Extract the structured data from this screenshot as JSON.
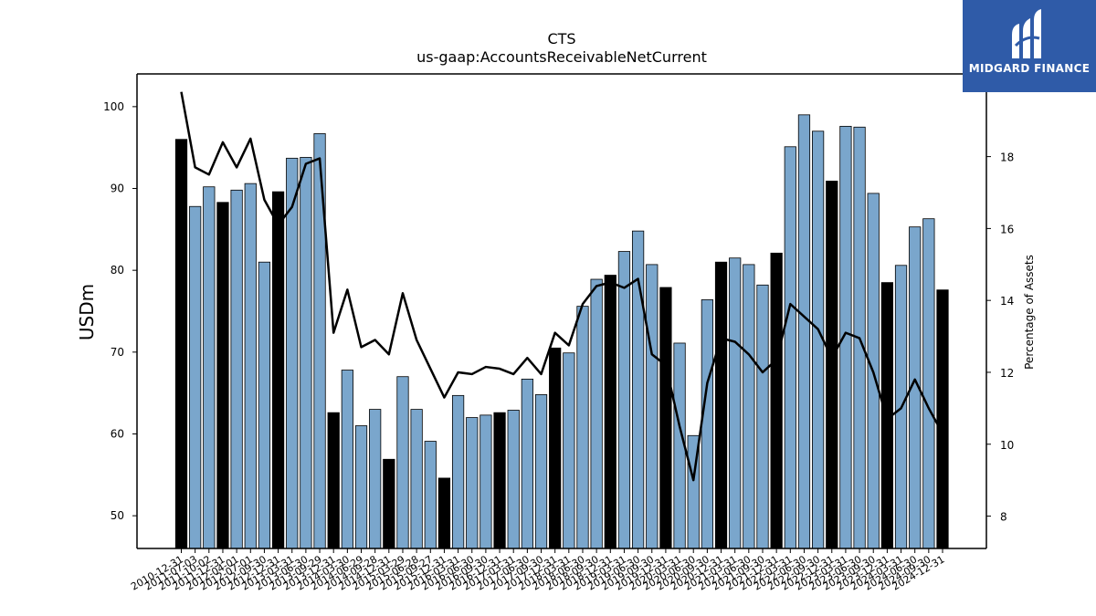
{
  "brand": {
    "name": "MIDGARD FINANCE",
    "bg_color": "#2f5ba8"
  },
  "chart_data": {
    "type": "bar",
    "title": "CTS",
    "subtitle": "us-gaap:AccountsReceivableNetCurrent",
    "ylabel": "USDm",
    "y2label": "Percentage of Assets",
    "ylim": [
      46,
      104
    ],
    "y2lim": [
      7.1,
      20.3
    ],
    "yticks": [
      50,
      60,
      70,
      80,
      90,
      100
    ],
    "y2ticks": [
      8,
      10,
      12,
      14,
      16,
      18
    ],
    "colors": {
      "annual": "#000000",
      "quarterly": "#7aa6cc",
      "line": "#000000"
    },
    "categories": [
      "2010-12-31",
      "2011-07-03",
      "2011-10-02",
      "2011-12-31",
      "2012-04-01",
      "2012-07-01",
      "2012-09-30",
      "2012-12-31",
      "2013-03-31",
      "2013-06-30",
      "2013-09-29",
      "2013-12-31",
      "2014-03-30",
      "2014-06-29",
      "2014-09-28",
      "2014-12-31",
      "2015-03-29",
      "2015-06-28",
      "2015-09-27",
      "2015-12-31",
      "2016-03-31",
      "2016-06-30",
      "2016-09-30",
      "2016-12-31",
      "2017-03-31",
      "2017-06-30",
      "2017-09-30",
      "2017-12-31",
      "2018-03-31",
      "2018-06-30",
      "2018-09-30",
      "2018-12-31",
      "2019-03-31",
      "2019-06-30",
      "2019-09-30",
      "2019-12-31",
      "2020-03-31",
      "2020-06-30",
      "2020-09-30",
      "2020-12-31",
      "2021-03-31",
      "2021-06-30",
      "2021-09-30",
      "2021-12-31",
      "2022-03-31",
      "2022-06-30",
      "2022-09-30",
      "2022-12-31",
      "2023-03-31",
      "2023-06-30",
      "2023-09-30",
      "2023-12-31",
      "2024-03-31",
      "2024-06-30",
      "2024-09-30",
      "2024-12-31"
    ],
    "series": [
      {
        "kind": "bar",
        "values": [
          96.0,
          87.8,
          90.2,
          88.3,
          89.8,
          90.6,
          81.0,
          89.6,
          93.7,
          93.8,
          96.7,
          62.6,
          67.8,
          61.0,
          63.0,
          56.9,
          67.0,
          63.0,
          59.1,
          54.6,
          64.7,
          62.0,
          62.3,
          62.6,
          62.9,
          66.7,
          64.8,
          70.5,
          69.9,
          75.6,
          78.9,
          79.4,
          82.3,
          84.8,
          80.7,
          77.9,
          71.1,
          59.8,
          76.4,
          81.0,
          81.5,
          80.7,
          78.2,
          82.1,
          95.1,
          99.0,
          97.0,
          90.9,
          97.6,
          97.5,
          89.4,
          78.5,
          80.6,
          85.3,
          86.3,
          77.6
        ],
        "annual": [
          true,
          false,
          false,
          true,
          false,
          false,
          false,
          true,
          false,
          false,
          false,
          true,
          false,
          false,
          false,
          true,
          false,
          false,
          false,
          true,
          false,
          false,
          false,
          true,
          false,
          false,
          false,
          true,
          false,
          false,
          false,
          true,
          false,
          false,
          false,
          true,
          false,
          false,
          false,
          true,
          false,
          false,
          false,
          true,
          false,
          false,
          false,
          true,
          false,
          false,
          false,
          true,
          false,
          false,
          false,
          true
        ]
      },
      {
        "kind": "line",
        "values": [
          19.8,
          17.7,
          17.5,
          18.4,
          17.7,
          18.5,
          16.8,
          16.1,
          16.6,
          17.8,
          17.95,
          13.1,
          14.3,
          12.7,
          12.9,
          12.5,
          14.2,
          12.9,
          12.1,
          11.3,
          12.0,
          11.95,
          12.15,
          12.1,
          11.95,
          12.4,
          11.95,
          13.1,
          12.75,
          13.9,
          14.4,
          14.5,
          14.35,
          14.6,
          12.5,
          12.2,
          10.5,
          9.0,
          11.7,
          12.95,
          12.85,
          12.5,
          12.0,
          12.35,
          13.9,
          13.55,
          13.2,
          12.4,
          13.1,
          12.95,
          12.0,
          10.7,
          11.0,
          11.8,
          11.0,
          10.3
        ]
      }
    ],
    "grid": false,
    "legend": "none"
  }
}
